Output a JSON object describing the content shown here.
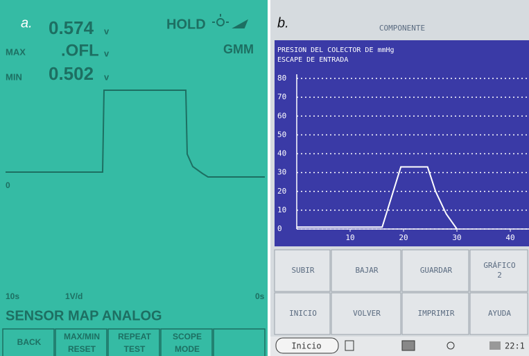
{
  "panel_a": {
    "label": "a.",
    "readings": [
      {
        "value": "0.574",
        "unit": "v"
      },
      {
        "label": "MAX",
        "value": ".OFL",
        "unit": "v"
      },
      {
        "label": "MIN",
        "value": "0.502",
        "unit": "v"
      }
    ],
    "status": "HOLD",
    "mode": "GMM",
    "zero_marker": "0",
    "time_left": "10s",
    "scale": "1V/d",
    "time_right": "0s",
    "sensor": "SENSOR MAP ANALOG",
    "buttons": [
      [
        "BACK"
      ],
      [
        "MAX/MIN",
        "RESET"
      ],
      [
        "REPEAT",
        "TEST"
      ],
      [
        "SCOPE",
        "MODE"
      ]
    ]
  },
  "panel_b": {
    "label": "b.",
    "header": "COMPONENTE",
    "chart": {
      "type": "line",
      "title_lines": [
        "PRESION DEL COLECTOR DE  mmHg",
        "ESCAPE DE ENTRADA"
      ],
      "x": [
        0,
        16,
        19.5,
        24.5,
        26,
        28,
        30
      ],
      "values": [
        1,
        1,
        33,
        33,
        20,
        8,
        0
      ],
      "color": "#ffffff",
      "xlim": [
        0,
        43.5
      ],
      "ylim": [
        0,
        80
      ],
      "xticks": [
        10,
        20,
        30,
        40
      ],
      "yticks": [
        0,
        10,
        20,
        30,
        40,
        50,
        60,
        70,
        80
      ],
      "grid": true
    },
    "buttons": [
      [
        "SUBIR"
      ],
      [
        "BAJAR"
      ],
      [
        "GUARDAR"
      ],
      [
        "GRÁFICO",
        "2"
      ],
      [
        "INICIO"
      ],
      [
        "VOLVER"
      ],
      [
        "IMPRIMIR"
      ],
      [
        "AYUDA"
      ]
    ],
    "taskbar": {
      "start": "Inicio",
      "clock": "22:1"
    }
  }
}
